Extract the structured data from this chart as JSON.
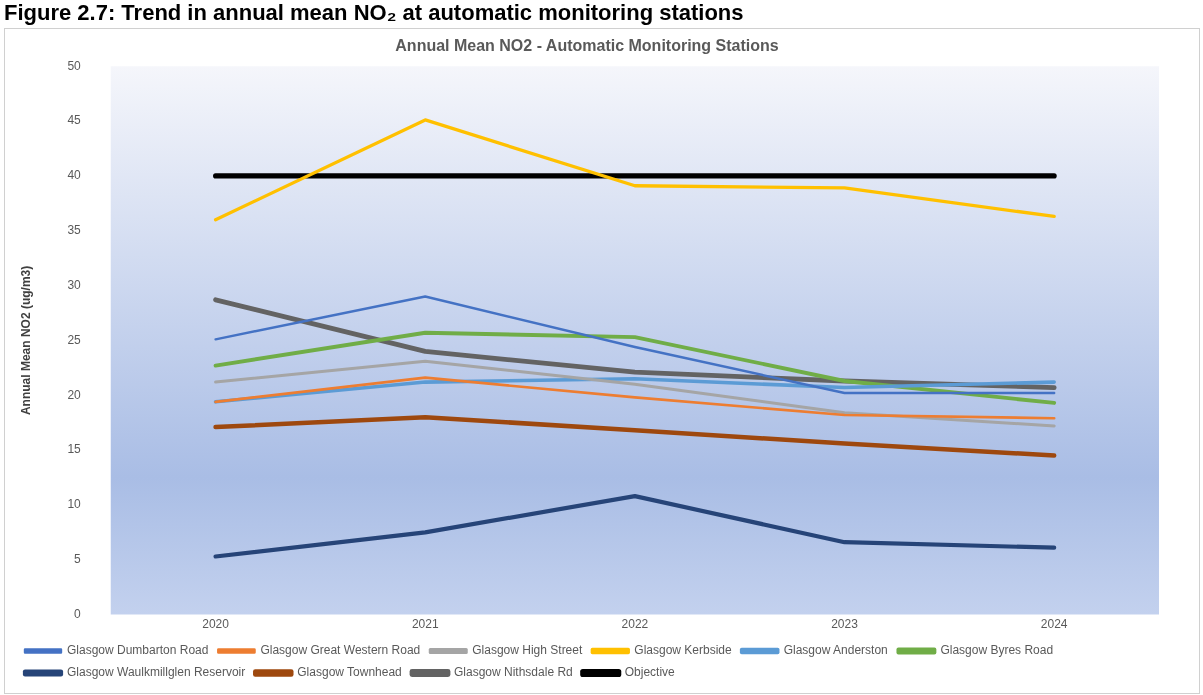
{
  "chart_data": {
    "type": "line",
    "title": "Annual Mean NO2 - Automatic Monitoring Stations",
    "ylabel": "Annual Mean NO2 (ug/m3)",
    "annotations": [
      "Figure 2.7: Trend in annual mean NO₂ at automatic monitoring stations"
    ],
    "categories": [
      "2020",
      "2021",
      "2022",
      "2023",
      "2024"
    ],
    "series": [
      {
        "name": "Glasgow Dumbarton Road",
        "color": "#4472c4",
        "values": [
          25.1,
          29.0,
          24.4,
          20.2,
          20.2
        ]
      },
      {
        "name": "Glasgow Great Western Road",
        "color": "#ed7d31",
        "values": [
          19.4,
          21.6,
          19.8,
          18.2,
          17.9
        ]
      },
      {
        "name": "Glasgow High Street",
        "color": "#a5a5a5",
        "values": [
          21.2,
          23.1,
          21.0,
          18.4,
          17.2
        ]
      },
      {
        "name": "Glasgow Kerbside",
        "color": "#ffc000",
        "values": [
          36.0,
          45.1,
          39.1,
          38.9,
          36.3
        ]
      },
      {
        "name": "Glasgow Anderston",
        "color": "#5b9bd5",
        "values": [
          19.4,
          21.2,
          21.5,
          20.7,
          21.2
        ]
      },
      {
        "name": "Glasgow Byres Road",
        "color": "#70ad47",
        "values": [
          22.7,
          25.7,
          25.3,
          21.3,
          19.3
        ]
      },
      {
        "name": "Glasgow Waulkmillglen Reservoir",
        "color": "#264478",
        "values": [
          5.3,
          7.5,
          10.8,
          6.6,
          6.1
        ]
      },
      {
        "name": "Glasgow Townhead",
        "color": "#9e480e",
        "values": [
          17.1,
          18.0,
          16.8,
          15.6,
          14.5
        ]
      },
      {
        "name": "Glasgow Nithsdale Rd",
        "color": "#636363",
        "values": [
          28.7,
          24.0,
          22.1,
          21.3,
          20.7
        ]
      },
      {
        "name": "Objective",
        "color": "#000000",
        "values": [
          40,
          40,
          40,
          40,
          40
        ]
      }
    ],
    "ylim": [
      0,
      50
    ],
    "yticks": [
      0,
      5,
      10,
      15,
      20,
      25,
      30,
      35,
      40,
      45,
      50
    ],
    "grid": false,
    "legend": "bottom",
    "marker": "none",
    "line_style": "solid"
  }
}
